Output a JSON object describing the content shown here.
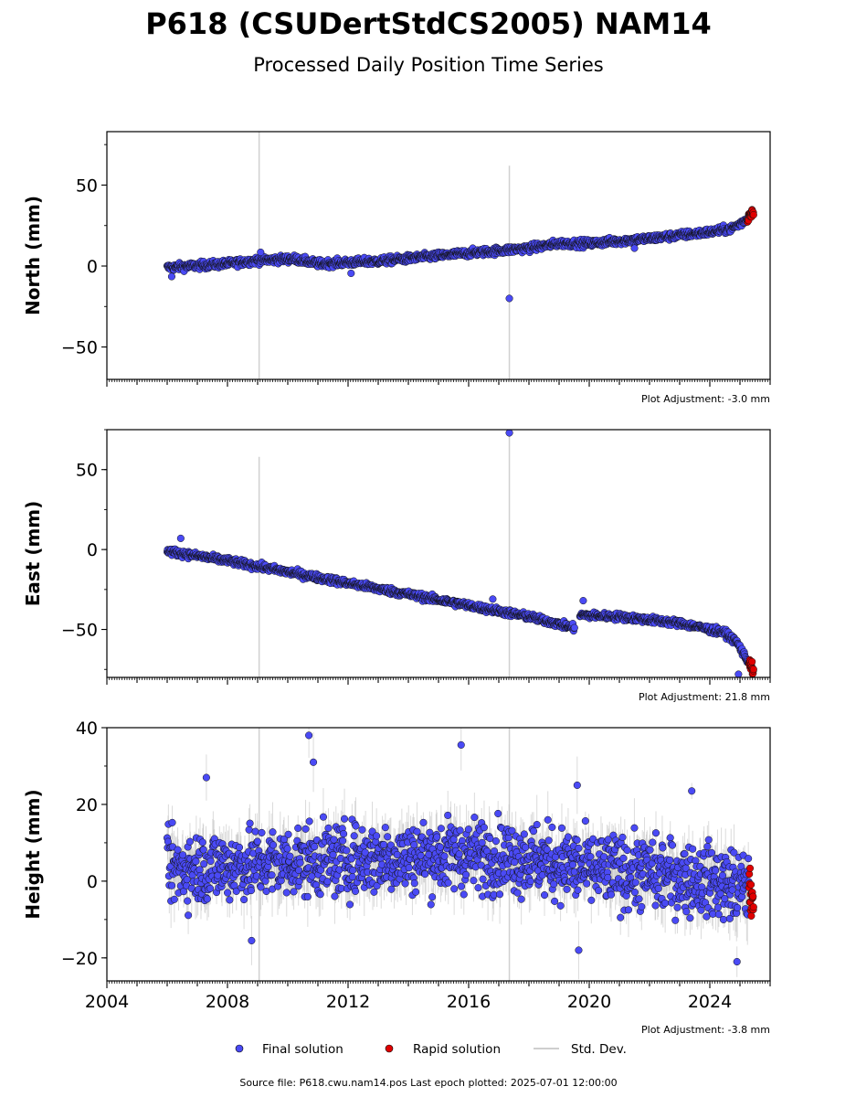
{
  "header": {
    "title": "P618 (CSUDertStdCS2005) NAM14",
    "subtitle": "Processed Daily Position Time Series"
  },
  "legend": {
    "final": "Final solution",
    "rapid": "Rapid solution",
    "std": "Std. Dev."
  },
  "footer": {
    "source": "Source file: P618.cwu.nam14.pos  Last epoch plotted: 2025-07-01 12:00:00"
  },
  "colors": {
    "final": "#4a4af5",
    "rapid": "#e00000",
    "std": "#bdbdbd",
    "vline": "#d0d0d0"
  },
  "chart_data": [
    {
      "type": "scatter",
      "ylabel": "North (mm)",
      "adjustment": "Plot Adjustment: -3.0 mm",
      "xlim": [
        2004.0,
        2026.0
      ],
      "ylim": [
        -70,
        83
      ],
      "yticks": [
        -50,
        0,
        50
      ],
      "xticks": [
        2004,
        2008,
        2012,
        2016,
        2020,
        2024
      ],
      "show_xtick_labels": false,
      "vlines": [
        [
          2009.05,
          -70,
          83
        ],
        [
          2017.35,
          -70,
          62
        ]
      ],
      "final_trend": [
        [
          2006.0,
          -1
        ],
        [
          2008.0,
          1.5
        ],
        [
          2009.0,
          3.5
        ],
        [
          2010.2,
          4.5
        ],
        [
          2011.0,
          1.5
        ],
        [
          2013.0,
          3
        ],
        [
          2016.0,
          8
        ],
        [
          2018.0,
          11
        ],
        [
          2019.0,
          14
        ],
        [
          2020.0,
          14
        ],
        [
          2022.0,
          17
        ],
        [
          2024.0,
          21
        ],
        [
          2024.7,
          23
        ],
        [
          2025.0,
          26
        ],
        [
          2025.3,
          30
        ]
      ],
      "final_noise": 1.6,
      "final_outliers": [
        [
          2006.15,
          -6.5
        ],
        [
          2009.1,
          8.5
        ],
        [
          2017.35,
          -20
        ],
        [
          2012.1,
          -4.5
        ],
        [
          2021.5,
          11
        ]
      ],
      "rapid_trend": [
        [
          2025.25,
          29
        ],
        [
          2025.45,
          34
        ]
      ],
      "rapid_noise": 2.0,
      "std_amp": 1.0
    },
    {
      "type": "scatter",
      "ylabel": "East (mm)",
      "adjustment": "Plot Adjustment: 21.8 mm",
      "xlim": [
        2004.0,
        2026.0
      ],
      "ylim": [
        -80,
        75
      ],
      "yticks": [
        -50,
        0,
        50
      ],
      "xticks": [
        2004,
        2008,
        2012,
        2016,
        2020,
        2024
      ],
      "show_xtick_labels": false,
      "vlines": [
        [
          2009.05,
          -80,
          58
        ],
        [
          2017.35,
          -80,
          75
        ]
      ],
      "final_trend": [
        [
          2006.0,
          -1
        ],
        [
          2008.0,
          -7
        ],
        [
          2010.0,
          -14
        ],
        [
          2012.0,
          -21
        ],
        [
          2014.0,
          -28
        ],
        [
          2016.0,
          -35
        ],
        [
          2018.0,
          -42
        ],
        [
          2019.5,
          -49
        ],
        [
          2019.7,
          -41
        ],
        [
          2021.0,
          -42
        ],
        [
          2023.0,
          -46
        ],
        [
          2024.5,
          -52
        ],
        [
          2024.9,
          -58
        ],
        [
          2025.2,
          -68
        ],
        [
          2025.35,
          -72
        ]
      ],
      "final_noise": 1.5,
      "final_outliers": [
        [
          2006.45,
          7
        ],
        [
          2017.35,
          73
        ],
        [
          2019.8,
          -32
        ],
        [
          2016.8,
          -31
        ],
        [
          2024.95,
          -78
        ]
      ],
      "rapid_trend": [
        [
          2025.3,
          -70
        ],
        [
          2025.45,
          -76
        ]
      ],
      "rapid_noise": 2.0,
      "std_amp": 1.0
    },
    {
      "type": "scatter",
      "ylabel": "Height (mm)",
      "adjustment": "Plot Adjustment: -3.8 mm",
      "xlim": [
        2004.0,
        2026.0
      ],
      "ylim": [
        -26,
        40
      ],
      "yticks": [
        -20,
        0,
        20,
        40
      ],
      "xticks": [
        2004,
        2008,
        2012,
        2016,
        2020,
        2024
      ],
      "xticklabels": [
        "2004",
        "2008",
        "2012",
        "2016",
        "2020",
        "2024"
      ],
      "show_xtick_labels": true,
      "vlines": [
        [
          2009.05,
          -26,
          40
        ],
        [
          2017.35,
          -26,
          40
        ]
      ],
      "final_trend": [
        [
          2006.0,
          3
        ],
        [
          2010.0,
          5
        ],
        [
          2013.0,
          6
        ],
        [
          2016.0,
          7
        ],
        [
          2018.0,
          6
        ],
        [
          2020.0,
          3
        ],
        [
          2022.0,
          2
        ],
        [
          2024.0,
          0
        ],
        [
          2025.3,
          -2
        ]
      ],
      "final_noise": 6.5,
      "final_outliers": [
        [
          2010.7,
          38
        ],
        [
          2010.85,
          31
        ],
        [
          2015.75,
          35.5
        ],
        [
          2019.6,
          25
        ],
        [
          2019.65,
          -18
        ],
        [
          2024.9,
          -21
        ],
        [
          2023.4,
          23.5
        ],
        [
          2008.8,
          -15.5
        ],
        [
          2007.3,
          27
        ]
      ],
      "rapid_trend": [
        [
          2025.3,
          -2
        ],
        [
          2025.45,
          -5
        ]
      ],
      "rapid_noise": 3.5,
      "std_amp": 5.0
    }
  ]
}
